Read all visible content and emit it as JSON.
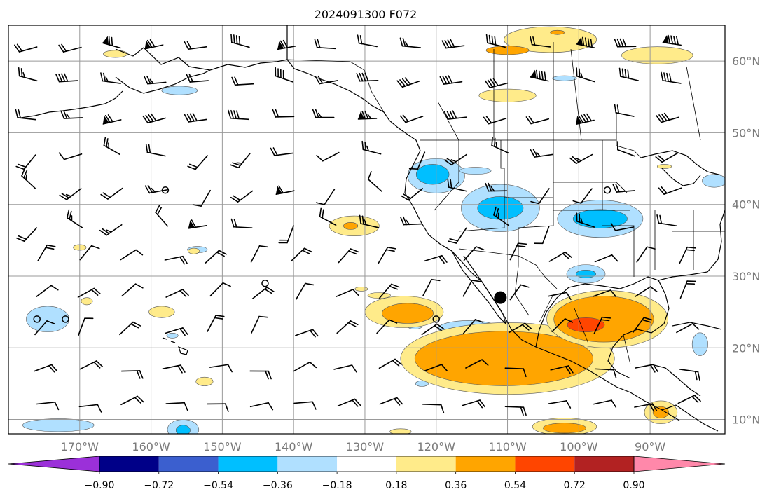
{
  "title": "2024091300 F072",
  "map": {
    "lon_range": [
      -180,
      -79.5
    ],
    "lat_range": [
      8,
      65
    ],
    "lat_labels": [
      {
        "value": 60,
        "label": "60°N"
      },
      {
        "value": 50,
        "label": "50°N"
      },
      {
        "value": 40,
        "label": "40°N"
      },
      {
        "value": 30,
        "label": "30°N"
      },
      {
        "value": 20,
        "label": "20°N"
      },
      {
        "value": 10,
        "label": "10°N"
      }
    ],
    "lon_labels": [
      {
        "value": -170,
        "label": "170°W"
      },
      {
        "value": -160,
        "label": "160°W"
      },
      {
        "value": -150,
        "label": "150°W"
      },
      {
        "value": -140,
        "label": "140°W"
      },
      {
        "value": -130,
        "label": "130°W"
      },
      {
        "value": -120,
        "label": "120°W"
      },
      {
        "value": -110,
        "label": "110°W"
      },
      {
        "value": -100,
        "label": "100°W"
      },
      {
        "value": -90,
        "label": "90°W"
      }
    ],
    "colorbar": {
      "bins": [
        {
          "color": "#9b30d9"
        },
        {
          "color": "#000088"
        },
        {
          "color": "#3b5fcf"
        },
        {
          "color": "#00bfff"
        },
        {
          "color": "#b0e0ff"
        },
        {
          "color": "#ffffff"
        },
        {
          "color": "#ffeb8a"
        },
        {
          "color": "#ffa500"
        },
        {
          "color": "#ff4500"
        },
        {
          "color": "#b22222"
        },
        {
          "color": "#ff88aa"
        }
      ],
      "tick_labels": [
        "−0.90",
        "−0.72",
        "−0.54",
        "−0.36",
        "−0.18",
        "0.18",
        "0.36",
        "0.54",
        "0.72",
        "0.90"
      ]
    },
    "anomaly_regions": [
      {
        "level": "pos1",
        "lon": -104,
        "lat": 63.0,
        "rx": 6.5,
        "ry": 1.8
      },
      {
        "level": "pos2",
        "lon": -110,
        "lat": 61.5,
        "rx": 3.0,
        "ry": 0.6
      },
      {
        "level": "pos1",
        "lon": -89,
        "lat": 60.8,
        "rx": 5.0,
        "ry": 1.2
      },
      {
        "level": "pos2",
        "lon": -103,
        "lat": 64.0,
        "rx": 1.0,
        "ry": 0.3
      },
      {
        "level": "pos1",
        "lon": -110,
        "lat": 55.2,
        "rx": 4.0,
        "ry": 0.9
      },
      {
        "level": "pos1",
        "lon": -165,
        "lat": 61.0,
        "rx": 1.7,
        "ry": 0.5
      },
      {
        "level": "neg1",
        "lon": -156,
        "lat": 55.9,
        "rx": 2.5,
        "ry": 0.6
      },
      {
        "level": "neg1",
        "lon": -102,
        "lat": 57.6,
        "rx": 1.7,
        "ry": 0.35
      },
      {
        "level": "neg1",
        "lon": -120,
        "lat": 44.0,
        "rx": 4.0,
        "ry": 2.4
      },
      {
        "level": "neg2",
        "lon": -120.5,
        "lat": 44.2,
        "rx": 2.3,
        "ry": 1.4
      },
      {
        "level": "neg1",
        "lon": -114.5,
        "lat": 44.7,
        "rx": 2.2,
        "ry": 0.5
      },
      {
        "level": "neg1",
        "lon": -111,
        "lat": 39.5,
        "rx": 5.5,
        "ry": 3.3
      },
      {
        "level": "neg2",
        "lon": -111,
        "lat": 39.5,
        "rx": 3.2,
        "ry": 1.6
      },
      {
        "level": "neg1",
        "lon": -97,
        "lat": 38.0,
        "rx": 6.0,
        "ry": 2.6
      },
      {
        "level": "neg2",
        "lon": -97,
        "lat": 38.0,
        "rx": 3.8,
        "ry": 1.3
      },
      {
        "level": "neg1",
        "lon": -99,
        "lat": 30.3,
        "rx": 2.7,
        "ry": 1.3
      },
      {
        "level": "neg2",
        "lon": -99,
        "lat": 30.3,
        "rx": 1.4,
        "ry": 0.55
      },
      {
        "level": "neg1",
        "lon": -115.5,
        "lat": 22.7,
        "rx": 4.2,
        "ry": 1.1
      },
      {
        "level": "neg1",
        "lon": -83,
        "lat": 20.5,
        "rx": 1.1,
        "ry": 1.6
      },
      {
        "level": "neg1",
        "lon": -81,
        "lat": 43.3,
        "rx": 1.7,
        "ry": 0.9
      },
      {
        "level": "neg1",
        "lon": -174.5,
        "lat": 24.0,
        "rx": 3.0,
        "ry": 1.8
      },
      {
        "level": "neg1",
        "lon": -153.5,
        "lat": 33.7,
        "rx": 1.4,
        "ry": 0.45
      },
      {
        "level": "neg1",
        "lon": -173,
        "lat": 9.2,
        "rx": 5.0,
        "ry": 0.9
      },
      {
        "level": "neg1",
        "lon": -155.5,
        "lat": 8.6,
        "rx": 2.2,
        "ry": 1.4
      },
      {
        "level": "neg2",
        "lon": -155.5,
        "lat": 8.5,
        "rx": 1.0,
        "ry": 0.7
      },
      {
        "level": "neg1",
        "lon": -123,
        "lat": 23.0,
        "rx": 1.0,
        "ry": 0.4
      },
      {
        "level": "neg1",
        "lon": -157,
        "lat": 21.7,
        "rx": 0.8,
        "ry": 0.35
      },
      {
        "level": "neg1",
        "lon": -122,
        "lat": 15.0,
        "rx": 0.9,
        "ry": 0.4
      },
      {
        "level": "pos1",
        "lon": -131.5,
        "lat": 37.0,
        "rx": 3.5,
        "ry": 1.4
      },
      {
        "level": "pos2",
        "lon": -132,
        "lat": 37.0,
        "rx": 1.0,
        "ry": 0.5
      },
      {
        "level": "pos1",
        "lon": -124.5,
        "lat": 25.0,
        "rx": 5.5,
        "ry": 2.2
      },
      {
        "level": "pos2",
        "lon": -124,
        "lat": 24.8,
        "rx": 3.6,
        "ry": 1.4
      },
      {
        "level": "pos1",
        "lon": -110,
        "lat": 18.5,
        "rx": 15.0,
        "ry": 5.0
      },
      {
        "level": "pos2",
        "lon": -110.5,
        "lat": 18.5,
        "rx": 12.5,
        "ry": 3.8
      },
      {
        "level": "pos1",
        "lon": -96,
        "lat": 24.0,
        "rx": 8.5,
        "ry": 4.0
      },
      {
        "level": "pos2",
        "lon": -96.5,
        "lat": 24.0,
        "rx": 7.0,
        "ry": 3.2
      },
      {
        "level": "pos3",
        "lon": -99,
        "lat": 23.2,
        "rx": 2.6,
        "ry": 1.0
      },
      {
        "level": "pos1",
        "lon": -88.5,
        "lat": 11.0,
        "rx": 2.3,
        "ry": 1.6
      },
      {
        "level": "pos2",
        "lon": -88.5,
        "lat": 11.0,
        "rx": 1.1,
        "ry": 0.8
      },
      {
        "level": "pos1",
        "lon": -102,
        "lat": 9.0,
        "rx": 4.5,
        "ry": 1.2
      },
      {
        "level": "pos2",
        "lon": -102,
        "lat": 8.8,
        "rx": 3.0,
        "ry": 0.7
      },
      {
        "level": "pos1",
        "lon": -125,
        "lat": 8.3,
        "rx": 1.5,
        "ry": 0.4
      },
      {
        "level": "pos1",
        "lon": -154,
        "lat": 33.5,
        "rx": 0.8,
        "ry": 0.4
      },
      {
        "level": "pos1",
        "lon": -170,
        "lat": 34.0,
        "rx": 0.9,
        "ry": 0.4
      },
      {
        "level": "pos1",
        "lon": -158.5,
        "lat": 25.0,
        "rx": 1.8,
        "ry": 0.8
      },
      {
        "level": "pos1",
        "lon": -169,
        "lat": 26.5,
        "rx": 0.8,
        "ry": 0.5
      },
      {
        "level": "pos1",
        "lon": -152.5,
        "lat": 15.3,
        "rx": 1.2,
        "ry": 0.6
      },
      {
        "level": "pos1",
        "lon": -128,
        "lat": 27.3,
        "rx": 1.6,
        "ry": 0.4
      },
      {
        "level": "pos1",
        "lon": -130.5,
        "lat": 28.2,
        "rx": 0.9,
        "ry": 0.3
      },
      {
        "level": "pos1",
        "lon": -88,
        "lat": 45.3,
        "rx": 1.0,
        "ry": 0.3
      }
    ],
    "tropical_symbol": {
      "lon": -111,
      "lat": 27
    }
  }
}
